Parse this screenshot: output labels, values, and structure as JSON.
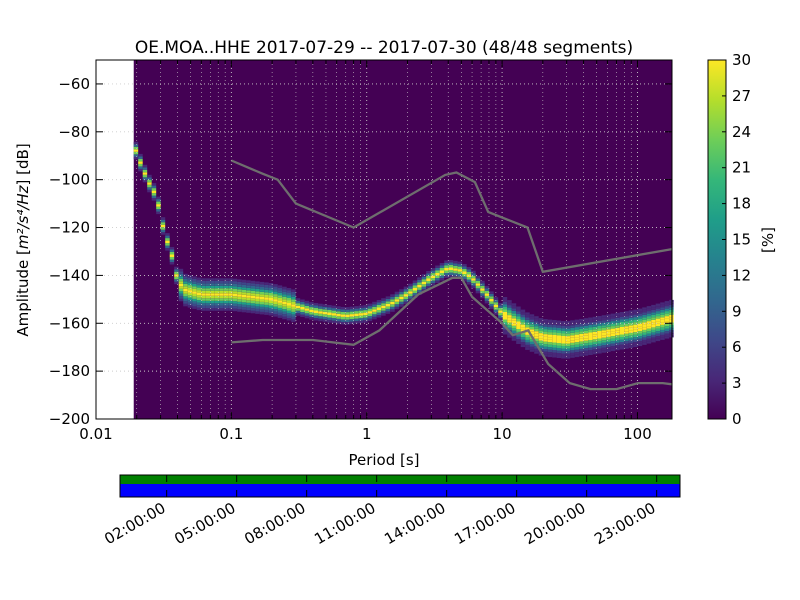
{
  "chart_data": {
    "type": "heatmap",
    "title": "OE.MOA..HHE   2017-07-29 -- 2017-07-30  (48/48 segments)",
    "xlabel": "Period [s]",
    "ylabel_prefix": "Amplitude [",
    "ylabel_math": "m²/s⁴/Hz",
    "ylabel_suffix": "] [dB]",
    "x_scale": "log",
    "xlim": [
      0.01,
      180
    ],
    "ylim": [
      -200,
      -50
    ],
    "x_ticks": [
      {
        "value": 0.01,
        "label": "0.01"
      },
      {
        "value": 0.1,
        "label": "0.1"
      },
      {
        "value": 1,
        "label": "1"
      },
      {
        "value": 10,
        "label": "10"
      },
      {
        "value": 100,
        "label": "100"
      }
    ],
    "y_ticks": [
      {
        "value": -60,
        "label": "−60"
      },
      {
        "value": -80,
        "label": "−80"
      },
      {
        "value": -100,
        "label": "−100"
      },
      {
        "value": -120,
        "label": "−120"
      },
      {
        "value": -140,
        "label": "−140"
      },
      {
        "value": -160,
        "label": "−160"
      },
      {
        "value": -180,
        "label": "−180"
      },
      {
        "value": -200,
        "label": "−200"
      }
    ],
    "data_start_period": 0.019,
    "background_color": "#440154",
    "mode_curve": [
      [
        0.0195,
        -87
      ],
      [
        0.022,
        -95
      ],
      [
        0.025,
        -102
      ],
      [
        0.028,
        -107
      ],
      [
        0.032,
        -122
      ],
      [
        0.037,
        -133
      ],
      [
        0.04,
        -142
      ],
      [
        0.045,
        -146
      ],
      [
        0.06,
        -148
      ],
      [
        0.1,
        -148
      ],
      [
        0.2,
        -150
      ],
      [
        0.4,
        -155
      ],
      [
        0.7,
        -157
      ],
      [
        1.0,
        -156
      ],
      [
        1.5,
        -152
      ],
      [
        2.0,
        -148
      ],
      [
        3.0,
        -141
      ],
      [
        4.0,
        -137
      ],
      [
        5.0,
        -138
      ],
      [
        6.0,
        -141
      ],
      [
        8.0,
        -149
      ],
      [
        10.0,
        -156
      ],
      [
        15.0,
        -163
      ],
      [
        20.0,
        -166
      ],
      [
        30.0,
        -167
      ],
      [
        50.0,
        -165
      ],
      [
        100.0,
        -162
      ],
      [
        180.0,
        -158
      ]
    ],
    "nhnm": [
      [
        0.1,
        -92
      ],
      [
        0.17,
        -97.5
      ],
      [
        0.22,
        -100
      ],
      [
        0.3,
        -110
      ],
      [
        0.8,
        -120
      ],
      [
        3.8,
        -98
      ],
      [
        4.6,
        -97
      ],
      [
        6.3,
        -101
      ],
      [
        7.9,
        -113.5
      ],
      [
        15.4,
        -120
      ],
      [
        20,
        -138.5
      ],
      [
        180,
        -129
      ]
    ],
    "nlnm": [
      [
        0.1,
        -168
      ],
      [
        0.17,
        -167
      ],
      [
        0.4,
        -167
      ],
      [
        0.8,
        -169
      ],
      [
        1.24,
        -163
      ],
      [
        2.4,
        -148
      ],
      [
        4.3,
        -141
      ],
      [
        5.0,
        -141
      ],
      [
        6.0,
        -149
      ],
      [
        10,
        -160
      ],
      [
        12,
        -165
      ],
      [
        15.6,
        -163
      ],
      [
        21.9,
        -177
      ],
      [
        31.6,
        -185
      ],
      [
        45,
        -187.5
      ],
      [
        70,
        -187.5
      ],
      [
        101,
        -185
      ],
      [
        154,
        -185
      ],
      [
        180,
        -185.5
      ]
    ],
    "colorbar": {
      "label": "[%]",
      "min": 0,
      "max": 30,
      "ticks": [
        {
          "value": 0,
          "label": "0"
        },
        {
          "value": 3,
          "label": "3"
        },
        {
          "value": 6,
          "label": "6"
        },
        {
          "value": 9,
          "label": "9"
        },
        {
          "value": 12,
          "label": "12"
        },
        {
          "value": 15,
          "label": "15"
        },
        {
          "value": 18,
          "label": "18"
        },
        {
          "value": 21,
          "label": "21"
        },
        {
          "value": 24,
          "label": "24"
        },
        {
          "value": 27,
          "label": "27"
        },
        {
          "value": 30,
          "label": "30"
        }
      ],
      "colors": [
        "#440154",
        "#482878",
        "#3e4989",
        "#31688e",
        "#26828e",
        "#1f9e89",
        "#35b779",
        "#6ece58",
        "#b5de2b",
        "#fde725"
      ]
    },
    "coverage": {
      "start_hour": 0,
      "end_hour": 24,
      "top_color": "#008000",
      "bottom_color": "#0000ff",
      "ticks": [
        {
          "hour": 2,
          "label": "02:00:00"
        },
        {
          "hour": 5,
          "label": "05:00:00"
        },
        {
          "hour": 8,
          "label": "08:00:00"
        },
        {
          "hour": 11,
          "label": "11:00:00"
        },
        {
          "hour": 14,
          "label": "14:00:00"
        },
        {
          "hour": 17,
          "label": "17:00:00"
        },
        {
          "hour": 20,
          "label": "20:00:00"
        },
        {
          "hour": 23,
          "label": "23:00:00"
        }
      ]
    }
  }
}
